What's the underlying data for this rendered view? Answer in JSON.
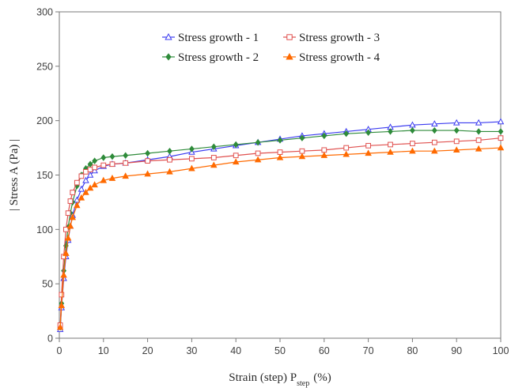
{
  "chart_data": {
    "type": "line",
    "xlabel": {
      "main": "Strain (step)  P",
      "sub": "step",
      "unit": "(%)"
    },
    "ylabel": "| Stress A  (Pa) |",
    "xlim": [
      0,
      100
    ],
    "ylim": [
      0,
      300
    ],
    "xticks": [
      0,
      10,
      20,
      30,
      40,
      50,
      60,
      70,
      80,
      90,
      100
    ],
    "yticks": [
      0,
      50,
      100,
      150,
      200,
      250,
      300
    ],
    "grid": false,
    "legend_position": "top-center",
    "legend_columns": 2,
    "series": [
      {
        "name": "Stress growth - 1",
        "color": "#3b3bf0",
        "marker": "triangle-open",
        "x": [
          0.2,
          0.5,
          1,
          1.5,
          2,
          2.5,
          3,
          4,
          5,
          6,
          7,
          8,
          10,
          12,
          15,
          20,
          25,
          30,
          35,
          40,
          45,
          50,
          55,
          60,
          65,
          70,
          75,
          80,
          85,
          90,
          95,
          100
        ],
        "y": [
          8,
          28,
          55,
          75,
          90,
          103,
          113,
          127,
          137,
          145,
          150,
          154,
          158,
          160,
          161,
          164,
          167,
          171,
          174,
          177,
          180,
          183,
          186,
          188,
          190,
          192,
          194,
          196,
          197,
          198,
          198,
          199
        ]
      },
      {
        "name": "Stress growth - 2",
        "color": "#2e8b3a",
        "marker": "diamond-filled",
        "x": [
          0.2,
          0.5,
          1,
          1.5,
          2,
          2.5,
          3,
          4,
          5,
          6,
          7,
          8,
          10,
          12,
          15,
          20,
          25,
          30,
          35,
          40,
          45,
          50,
          55,
          60,
          65,
          70,
          75,
          80,
          85,
          90,
          95,
          100
        ],
        "y": [
          10,
          32,
          62,
          85,
          102,
          115,
          125,
          140,
          150,
          156,
          160,
          163,
          166,
          167,
          168,
          170,
          172,
          174,
          176,
          178,
          180,
          182,
          184,
          186,
          188,
          189,
          190,
          191,
          191,
          191,
          190,
          190
        ]
      },
      {
        "name": "Stress growth - 3",
        "color": "#e0504e",
        "marker": "square-open",
        "x": [
          0.2,
          0.5,
          1,
          1.5,
          2,
          2.5,
          3,
          4,
          5,
          6,
          7,
          8,
          10,
          12,
          15,
          20,
          25,
          30,
          35,
          40,
          45,
          50,
          55,
          60,
          65,
          70,
          75,
          80,
          85,
          90,
          95,
          100
        ],
        "y": [
          12,
          40,
          75,
          100,
          115,
          126,
          134,
          143,
          149,
          153,
          155,
          157,
          159,
          160,
          161,
          163,
          164,
          165,
          166,
          168,
          170,
          171,
          172,
          173,
          175,
          177,
          178,
          179,
          180,
          181,
          182,
          184
        ]
      },
      {
        "name": "Stress growth - 4",
        "color": "#ff6a00",
        "marker": "triangle-filled",
        "x": [
          0.2,
          0.5,
          1,
          1.5,
          2,
          2.5,
          3,
          4,
          5,
          6,
          7,
          8,
          10,
          12,
          15,
          20,
          25,
          30,
          35,
          40,
          45,
          50,
          55,
          60,
          65,
          70,
          75,
          80,
          85,
          90,
          95,
          100
        ],
        "y": [
          10,
          30,
          58,
          78,
          92,
          103,
          111,
          122,
          129,
          134,
          138,
          141,
          145,
          147,
          149,
          151,
          153,
          156,
          159,
          162,
          164,
          166,
          167,
          168,
          169,
          170,
          171,
          172,
          172,
          173,
          174,
          175
        ]
      }
    ]
  }
}
